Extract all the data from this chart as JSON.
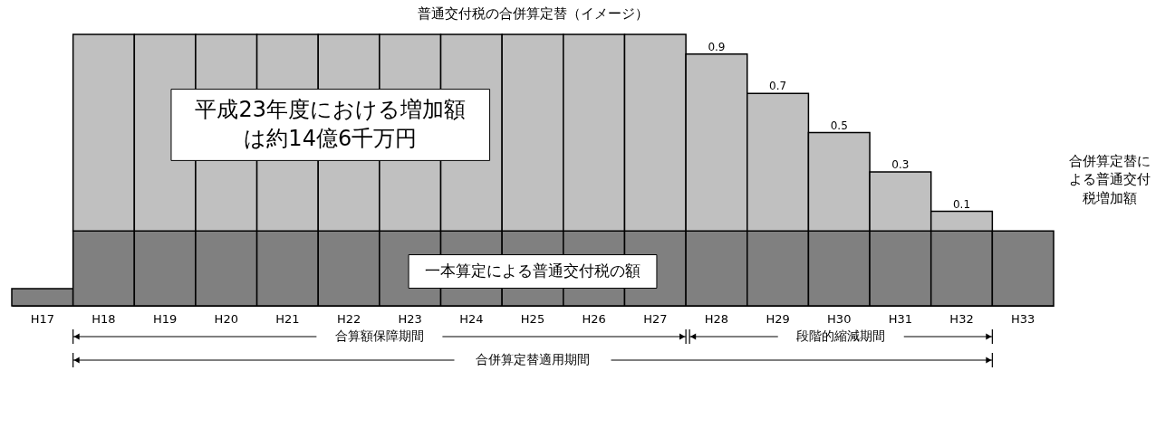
{
  "chart_data": {
    "type": "bar",
    "title": "普通交付税の合併算定替（イメージ）",
    "categories": [
      "H17",
      "H18",
      "H19",
      "H20",
      "H21",
      "H22",
      "H23",
      "H24",
      "H25",
      "H26",
      "H27",
      "H28",
      "H29",
      "H30",
      "H31",
      "H32",
      "H33"
    ],
    "ylim": [
      0,
      1.381
    ],
    "tick_labels": "x",
    "stacked": true,
    "grid": false,
    "series": [
      {
        "color": "#808080",
        "values": [
          0.088,
          0.381,
          0.381,
          0.381,
          0.381,
          0.381,
          0.381,
          0.381,
          0.381,
          0.381,
          0.381,
          0.381,
          0.381,
          0.381,
          0.381,
          0.381,
          0.381
        ]
      },
      {
        "color": "#c0c0c0",
        "values": [
          null,
          1,
          1,
          1,
          1,
          1,
          1,
          1,
          1,
          1,
          1,
          0.9,
          0.7,
          0.5,
          0.3,
          0.1,
          null
        ],
        "value_labels": [
          null,
          null,
          null,
          null,
          null,
          null,
          null,
          null,
          null,
          null,
          null,
          "0.9",
          "0.7",
          "0.5",
          "0.3",
          "0.1",
          null
        ]
      }
    ],
    "annotations": [
      "平成23年度における増加額は約14億6千万円",
      "一本算定による普通交付税の額",
      "合併算定替による普通交付税増加額",
      "合算額保障期間",
      "段階的縮減期間",
      "合併算定替適用期間"
    ]
  }
}
